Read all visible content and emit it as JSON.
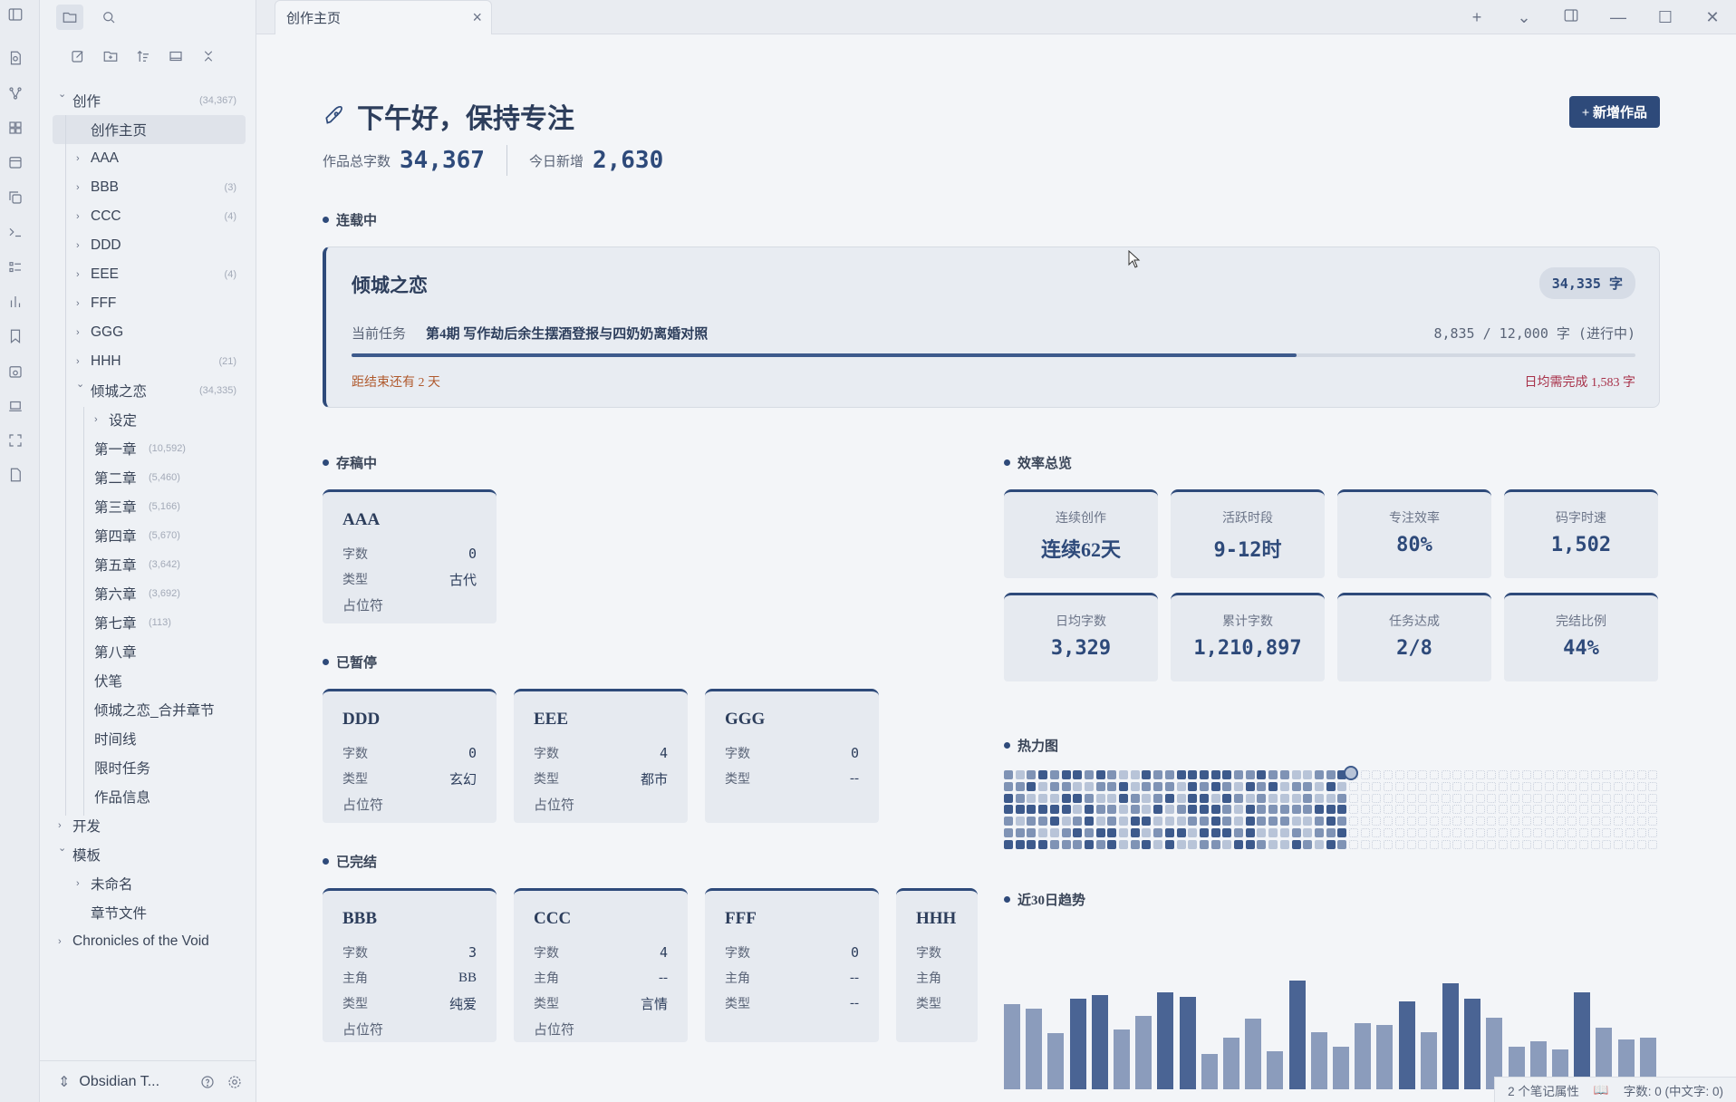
{
  "tab": {
    "title": "创作主页",
    "close": "×"
  },
  "window": {
    "new_tab": "+",
    "dropdown": "⌄",
    "minimize": "—",
    "maximize": "☐",
    "close": "✕"
  },
  "sidebar": {
    "tree": [
      {
        "label": "创作",
        "count": "(34,367)",
        "level": 0,
        "open": true
      },
      {
        "label": "创作主页",
        "count": "",
        "level": 1,
        "leaf": true,
        "selected": true
      },
      {
        "label": "AAA",
        "count": "",
        "level": 1
      },
      {
        "label": "BBB",
        "count": "(3)",
        "level": 1
      },
      {
        "label": "CCC",
        "count": "(4)",
        "level": 1
      },
      {
        "label": "DDD",
        "count": "",
        "level": 1
      },
      {
        "label": "EEE",
        "count": "(4)",
        "level": 1
      },
      {
        "label": "FFF",
        "count": "",
        "level": 1
      },
      {
        "label": "GGG",
        "count": "",
        "level": 1
      },
      {
        "label": "HHH",
        "count": "(21)",
        "level": 1
      },
      {
        "label": "倾城之恋",
        "count": "(34,335)",
        "level": 1,
        "open": true
      },
      {
        "label": "设定",
        "count": "",
        "level": 2
      },
      {
        "label": "第一章",
        "sub": "(10,592)",
        "level": 2,
        "leaf": true
      },
      {
        "label": "第二章",
        "sub": "(5,460)",
        "level": 2,
        "leaf": true
      },
      {
        "label": "第三章",
        "sub": "(5,166)",
        "level": 2,
        "leaf": true
      },
      {
        "label": "第四章",
        "sub": "(5,670)",
        "level": 2,
        "leaf": true
      },
      {
        "label": "第五章",
        "sub": "(3,642)",
        "level": 2,
        "leaf": true
      },
      {
        "label": "第六章",
        "sub": "(3,692)",
        "level": 2,
        "leaf": true
      },
      {
        "label": "第七章",
        "sub": "(113)",
        "level": 2,
        "leaf": true
      },
      {
        "label": "第八章",
        "sub": "",
        "level": 2,
        "leaf": true
      },
      {
        "label": "伏笔",
        "sub": "",
        "level": 2,
        "leaf": true
      },
      {
        "label": "倾城之恋_合并章节",
        "sub": "",
        "level": 2,
        "leaf": true
      },
      {
        "label": "时间线",
        "sub": "",
        "level": 2,
        "leaf": true
      },
      {
        "label": "限时任务",
        "sub": "",
        "level": 2,
        "leaf": true
      },
      {
        "label": "作品信息",
        "sub": "",
        "level": 2,
        "leaf": true
      },
      {
        "label": "开发",
        "count": "",
        "level": 0
      },
      {
        "label": "模板",
        "count": "",
        "level": 0,
        "open": true
      },
      {
        "label": "未命名",
        "count": "",
        "level": 1
      },
      {
        "label": "章节文件",
        "count": "",
        "level": 1,
        "leaf": true
      },
      {
        "label": "Chronicles of the Void",
        "count": "",
        "level": 0
      }
    ],
    "vault_name": "Obsidian T..."
  },
  "main": {
    "greeting": "下午好，保持专注",
    "new_work": "+ 新增作品",
    "total_label": "作品总字数",
    "total_value": "34,367",
    "today_label": "今日新增",
    "today_value": "2,630",
    "serial_heading": "连载中",
    "serial": {
      "title": "倾城之恋",
      "badge": "34,335 字",
      "task_label": "当前任务",
      "task": "第4期 写作劫后余生摆酒登报与四奶奶离婚对照",
      "progress_text": "8,835 / 12,000 字 (进行中)",
      "progress": 0.736,
      "days_left": "距结束还有 2 天",
      "daily_need": "日均需完成 1,583 字"
    },
    "draft_heading": "存稿中",
    "paused_heading": "已暂停",
    "done_heading": "已完结",
    "efficiency_heading": "效率总览",
    "heatmap_heading": "热力图",
    "trend_heading": "近30日趋势",
    "drafts": [
      {
        "title": "AAA",
        "rows": [
          [
            "字数",
            "0"
          ],
          [
            "类型",
            "古代"
          ]
        ],
        "ph": "占位符"
      }
    ],
    "paused": [
      {
        "title": "DDD",
        "rows": [
          [
            "字数",
            "0"
          ],
          [
            "类型",
            "玄幻"
          ]
        ],
        "ph": "占位符"
      },
      {
        "title": "EEE",
        "rows": [
          [
            "字数",
            "4"
          ],
          [
            "类型",
            "都市"
          ]
        ],
        "ph": "占位符"
      },
      {
        "title": "GGG",
        "rows": [
          [
            "字数",
            "0"
          ],
          [
            "类型",
            "--"
          ]
        ],
        "ph": ""
      }
    ],
    "done": [
      {
        "title": "BBB",
        "rows": [
          [
            "字数",
            "3"
          ],
          [
            "主角",
            "BB"
          ],
          [
            "类型",
            "纯爱"
          ]
        ],
        "ph": "占位符"
      },
      {
        "title": "CCC",
        "rows": [
          [
            "字数",
            "4"
          ],
          [
            "主角",
            "--"
          ],
          [
            "类型",
            "言情"
          ]
        ],
        "ph": "占位符"
      },
      {
        "title": "FFF",
        "rows": [
          [
            "字数",
            "0"
          ],
          [
            "主角",
            "--"
          ],
          [
            "类型",
            "--"
          ]
        ],
        "ph": ""
      },
      {
        "title": "HHH",
        "rows": [
          [
            "字数",
            ""
          ],
          [
            "主角",
            ""
          ],
          [
            "类型",
            ""
          ]
        ],
        "ph": ""
      }
    ],
    "efficiency": [
      {
        "label": "连续创作",
        "value": "连续62天"
      },
      {
        "label": "活跃时段",
        "value": "9-12时"
      },
      {
        "label": "专注效率",
        "value": "80%"
      },
      {
        "label": "码字时速",
        "value": "1,502"
      },
      {
        "label": "日均字数",
        "value": "3,329"
      },
      {
        "label": "累计字数",
        "value": "1,210,897"
      },
      {
        "label": "任务达成",
        "value": "2/8"
      },
      {
        "label": "完结比例",
        "value": "44%"
      }
    ],
    "trend": [
      0.58,
      0.55,
      0.38,
      0.62,
      0.64,
      0.41,
      0.5,
      0.66,
      0.63,
      0.24,
      0.35,
      0.48,
      0.26,
      0.74,
      0.39,
      0.29,
      0.45,
      0.44,
      0.6,
      0.39,
      0.72,
      0.62,
      0.49,
      0.29,
      0.33,
      0.27,
      0.66,
      0.42,
      0.34,
      0.35
    ],
    "trend_strong": [
      false,
      false,
      false,
      true,
      true,
      false,
      false,
      true,
      true,
      false,
      false,
      false,
      false,
      true,
      false,
      false,
      false,
      false,
      true,
      false,
      true,
      true,
      false,
      false,
      false,
      false,
      true,
      false,
      false,
      false
    ]
  },
  "status": {
    "props": "2 个笔记属性",
    "words": "字数: 0 (中文字: 0)"
  },
  "colors": {
    "accent": "#2e4a7a",
    "heat_dark": "#3d5a8c",
    "heat_mid": "#7f93b5",
    "heat_light": "#b8c4d8"
  }
}
